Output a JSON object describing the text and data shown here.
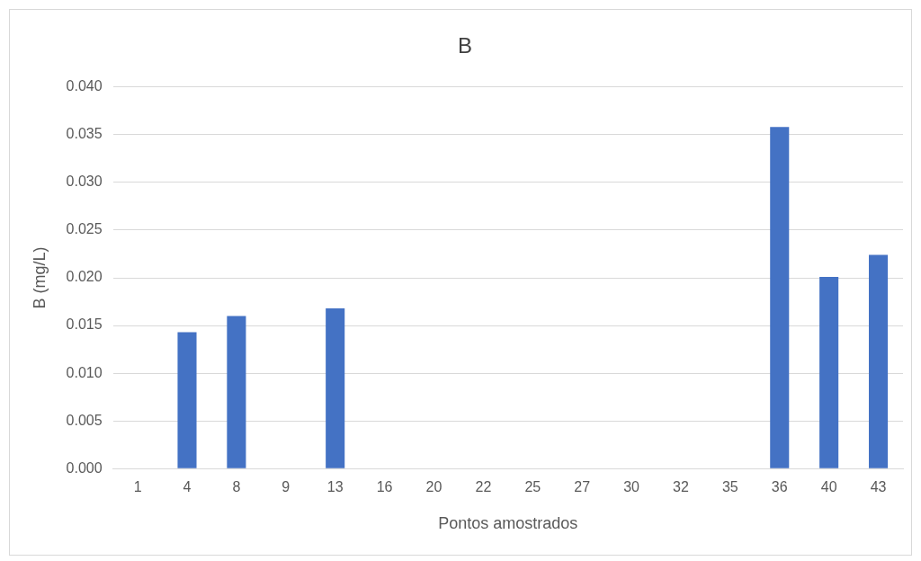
{
  "chart_data": {
    "type": "bar",
    "title": "B",
    "xlabel": "Pontos amostrados",
    "ylabel": "B (mg/L)",
    "categories": [
      "1",
      "4",
      "8",
      "9",
      "13",
      "16",
      "20",
      "22",
      "25",
      "27",
      "30",
      "32",
      "35",
      "36",
      "40",
      "43"
    ],
    "values": [
      null,
      0.0143,
      0.016,
      null,
      0.0168,
      null,
      null,
      null,
      null,
      null,
      null,
      null,
      null,
      0.0358,
      0.0201,
      0.0224
    ],
    "color": "#4472c4",
    "ylim": [
      0,
      0.04
    ],
    "yticks": [
      {
        "value": 0,
        "label": "0.000"
      },
      {
        "value": 0.005,
        "label": "0.005"
      },
      {
        "value": 0.01,
        "label": "0.010"
      },
      {
        "value": 0.015,
        "label": "0.015"
      },
      {
        "value": 0.02,
        "label": "0.020"
      },
      {
        "value": 0.025,
        "label": "0.025"
      },
      {
        "value": 0.03,
        "label": "0.030"
      },
      {
        "value": 0.035,
        "label": "0.035"
      },
      {
        "value": 0.04,
        "label": "0.040"
      }
    ],
    "grid": "y",
    "legend": false
  }
}
